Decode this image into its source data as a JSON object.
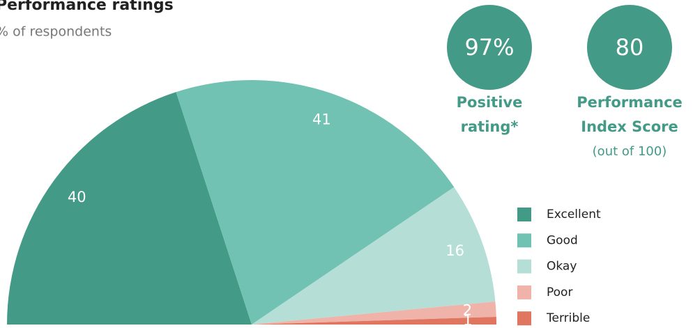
{
  "chart_data": {
    "type": "semi-pie",
    "title": "Performance ratings",
    "subtitle": "% of respondents",
    "categories": [
      "Excellent",
      "Good",
      "Okay",
      "Poor",
      "Terrible"
    ],
    "values": [
      40,
      41,
      16,
      2,
      1
    ],
    "colors": [
      "#439a87",
      "#71c2b3",
      "#b5dfd6",
      "#f0b3aa",
      "#e07560"
    ],
    "legend": "bottom-right"
  },
  "kpis": [
    {
      "value": 97,
      "value_label": "97%",
      "label": [
        "Positive",
        "rating*"
      ]
    },
    {
      "value": 80,
      "label": [
        "Performance",
        "Index Score"
      ],
      "note": "(out of 100)"
    }
  ]
}
